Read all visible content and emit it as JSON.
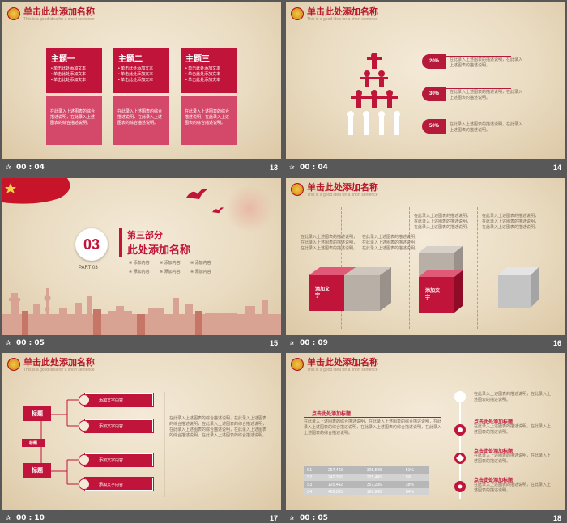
{
  "slides": [
    {
      "number": "13",
      "time": "00 : 04",
      "header": {
        "title": "单击此处添加名称",
        "subtitle": "This is a good idea for a short sentence"
      },
      "topics": [
        {
          "title": "主题一",
          "lines": [
            "• 单击此处添加文本",
            "• 单击此处添加文本",
            "• 单击此处添加文本"
          ],
          "desc": "在此录入上述图表的综合描述说明，在此录入上述图表的综合描述说明。"
        },
        {
          "title": "主题二",
          "lines": [
            "• 单击此处添加文本",
            "• 单击此处添加文本",
            "• 单击此处添加文本"
          ],
          "desc": "在此录入上述图表的综合描述说明，在此录入上述图表的综合描述说明。"
        },
        {
          "title": "主题三",
          "lines": [
            "• 单击此处添加文本",
            "• 单击此处添加文本",
            "• 单击此处添加文本"
          ],
          "desc": "在此录入上述图表的综合描述说明，在此录入上述图表的综合描述说明。"
        }
      ]
    },
    {
      "number": "14",
      "time": "00 : 04",
      "header": {
        "title": "单击此处添加名称",
        "subtitle": "This is a good idea for a short sentence"
      },
      "stats": [
        {
          "value": "20%",
          "text": "在此录入上述图表的描述说明，在此录入上述图表的描述说明。"
        },
        {
          "value": "30%",
          "text": "在此录入上述图表的描述说明，在此录入上述图表的描述说明。"
        },
        {
          "value": "50%",
          "text": "在此录入上述图表的描述说明，在此录入上述图表的描述说明。"
        }
      ]
    },
    {
      "number": "15",
      "time": "00 : 05",
      "section_no": "03",
      "part_label": "PART 03",
      "section_title": "第三部分",
      "section_name": "此处添加名称",
      "items": [
        "添加内容",
        "添加内容",
        "添加内容",
        "添加内容",
        "添加内容",
        "添加内容"
      ]
    },
    {
      "number": "16",
      "time": "00 : 09",
      "header": {
        "title": "单击此处添加名称",
        "subtitle": "This is a good idea for a short sentence"
      },
      "cube_label": "添加文字",
      "cube_label2": "添加文字",
      "text_a": "在此录入上述图表的描述说明，在此录入上述图表的描述说明，在此录入上述图表的描述说明。",
      "text_b": "在此录入上述图表的描述说明，在此录入上述图表的描述说明，在此录入上述图表的描述说明。",
      "text_c": "在此录入上述图表的描述说明，在此录入上述图表的描述说明，在此录入上述图表的描述说明。",
      "text_d": "在此录入上述图表的描述说明，在此录入上述图表的描述说明，在此录入上述图表的描述说明。"
    },
    {
      "number": "17",
      "time": "00 : 10",
      "header": {
        "title": "单击此处添加名称",
        "subtitle": "This is a good idea for a short sentence"
      },
      "label_a": "标题",
      "label_mid": "标题",
      "label_b": "标题",
      "options": [
        "添加文字内容",
        "添加文字内容",
        "添加文字内容",
        "添加文字内容"
      ],
      "body": "在此录入上述图表的综合描述说明，在此录入上述图表的综合描述说明，在此录入上述图表的综合描述说明，在此录入上述图表的综合描述说明，在此录入上述图表的综合描述说明，在此录入上述图表的综合描述说明。"
    },
    {
      "number": "18",
      "time": "00 : 05",
      "header": {
        "title": "单击此处添加名称",
        "subtitle": "This is a good idea for a short sentence"
      },
      "heading": "点击此处添加标题",
      "paragraph": "在此录入上述图表的综合描述说明，在此录入上述图表的综合描述说明，在此录入上述图表的综合描述说明，在此录入上述图表的综合描述说明，在此录入上述图表的综合描述说明。",
      "table": [
        [
          "S1",
          "257,443",
          "325,548",
          "51%"
        ],
        [
          "S2",
          "242,265",
          "225,445",
          "5%"
        ],
        [
          "S3",
          "125,442",
          "357,236",
          "28%"
        ],
        [
          "S4",
          "469,585",
          "166,848",
          "84%"
        ]
      ],
      "right_heading": "点击此处添加标题",
      "right_items": [
        {
          "title": "点击此处添加标题",
          "text": "在此录入上述图表的描述说明，在此录入上述图表的描述说明。"
        },
        {
          "title": "点击此处添加标题",
          "text": "在此录入上述图表的描述说明，在此录入上述图表的描述说明。"
        },
        {
          "title": "点击此处添加标题",
          "text": "在此录入上述图表的描述说明，在此录入上述图表的描述说明。"
        }
      ],
      "top_text": "在此录入上述图表的描述说明，在此录入上述图表的描述说明。"
    }
  ],
  "colors": {
    "accent": "#c1143a",
    "background": "#585858",
    "paper": "#eadcc2"
  }
}
